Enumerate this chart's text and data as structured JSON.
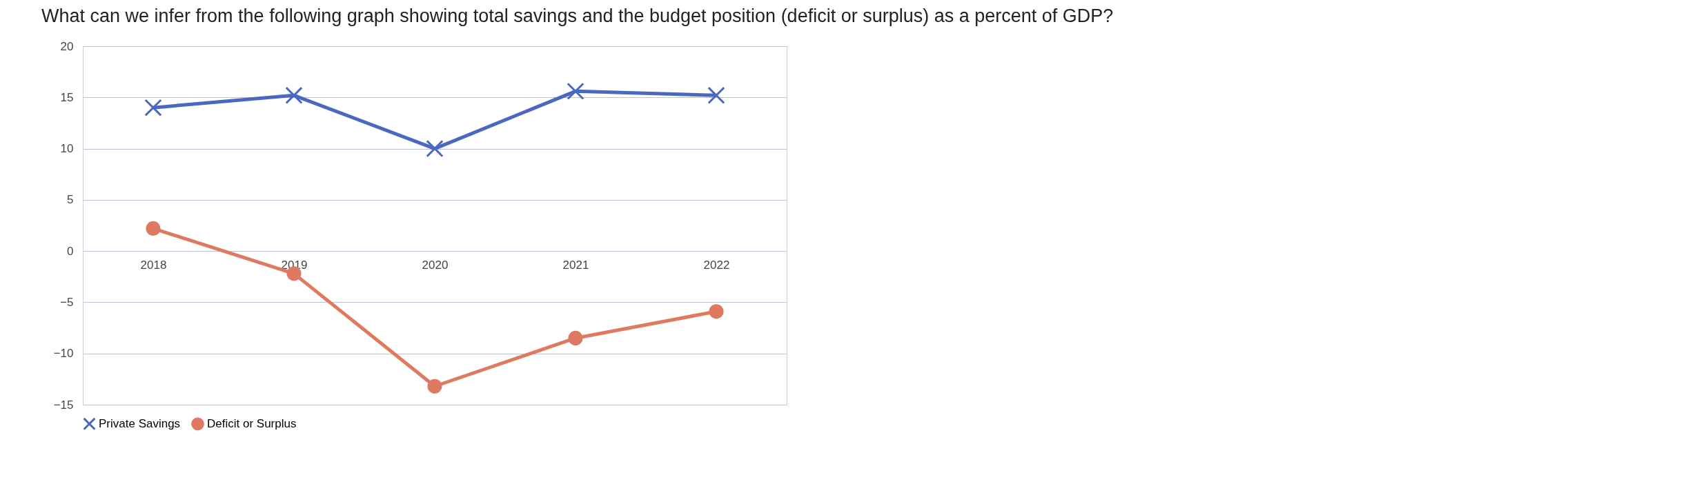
{
  "chart_data": {
    "type": "line",
    "title": "What can we infer from the following graph showing total savings and the budget position (deficit or surplus) as a percent of GDP?",
    "categories": [
      "2018",
      "2019",
      "2020",
      "2021",
      "2022"
    ],
    "series": [
      {
        "name": "Private Savings",
        "color": "#4a68be",
        "marker": "cross",
        "values": [
          14,
          15.2,
          10,
          15.6,
          15.2
        ]
      },
      {
        "name": "Deficit or Surplus",
        "color": "#de7a62",
        "marker": "circle",
        "values": [
          2.2,
          -2.2,
          -13.2,
          -8.5,
          -5.9
        ]
      }
    ],
    "ylim": [
      -15,
      20
    ],
    "yticks": [
      -15,
      -10,
      -5,
      0,
      5,
      10,
      15,
      20
    ],
    "grid": "y",
    "legend": "bottom"
  }
}
